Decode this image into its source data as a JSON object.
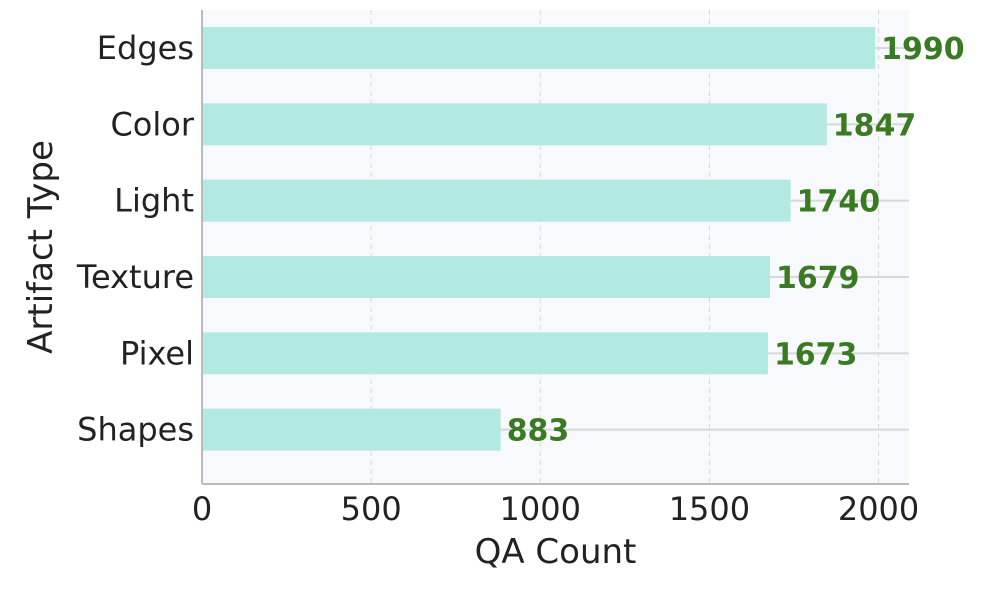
{
  "chart_data": {
    "type": "bar",
    "orientation": "horizontal",
    "categories": [
      "Edges",
      "Color",
      "Light",
      "Texture",
      "Pixel",
      "Shapes"
    ],
    "values": [
      1990,
      1847,
      1740,
      1679,
      1673,
      883
    ],
    "xlabel": "QA Count",
    "ylabel": "Artifact Type",
    "xlim": [
      0,
      2090
    ],
    "xticks": [
      0,
      500,
      1000,
      1500,
      2000
    ],
    "xtick_labels": [
      "0",
      "500",
      "1000",
      "1500",
      "2000"
    ],
    "grid": "vertical dashed + horizontal lines",
    "colors": {
      "bar": "#b2e9e3",
      "data_label": "#3a7a22",
      "plot_background": "#f8f9fc",
      "grid": "#d8d8d8",
      "axis": "#bbbbbb"
    }
  }
}
